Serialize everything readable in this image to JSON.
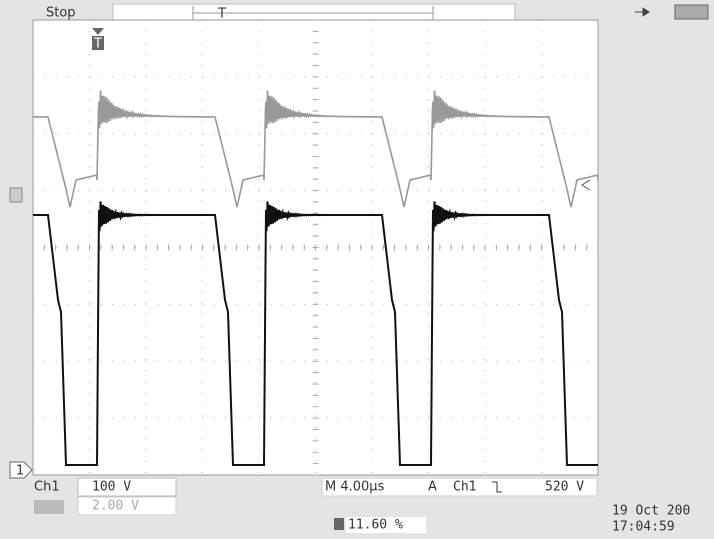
{
  "status": "Stop",
  "trigger_marker": "T",
  "channel_markers": [
    "1"
  ],
  "channels": [
    {
      "label": "Ch1",
      "scale": "100 V"
    },
    {
      "scale": "2.00 V"
    }
  ],
  "timebase": "M 4.00µs",
  "trigger": {
    "label": "A",
    "source": "Ch1",
    "level": "520 V"
  },
  "trigger_position": "11.60 %",
  "date": "19 Oct 200",
  "time": "17:04:59"
}
